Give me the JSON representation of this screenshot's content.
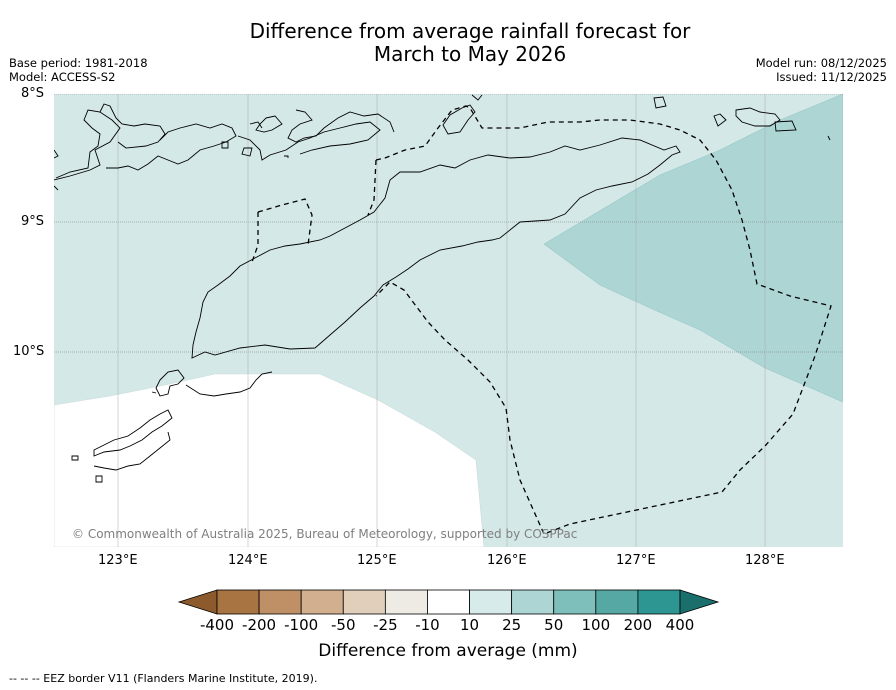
{
  "title": {
    "line1": "Difference from average rainfall forecast for",
    "line2": "March to May 2026"
  },
  "meta": {
    "base_period": "Base period: 1981-2018",
    "model": "Model: ACCESS-S2",
    "model_run": "Model run: 08/12/2025",
    "issued": "Issued: 11/12/2025"
  },
  "map": {
    "latitude_labels": [
      "8°S",
      "9°S",
      "10°S"
    ],
    "longitude_labels": [
      "123°E",
      "124°E",
      "125°E",
      "126°E",
      "127°E",
      "128°E"
    ],
    "copyright": "© Commonwealth of Australia 2025, Bureau of Meteorology, supported by COSPPac",
    "regions": [
      {
        "category": "10 to 25",
        "color": "#d4e8e7"
      },
      {
        "category": "25 to 50",
        "color": "#acd5d4"
      },
      {
        "category": "-10 to 10",
        "color": "#ffffff"
      }
    ]
  },
  "colorbar": {
    "label": "Difference from average (mm)",
    "ticks": [
      "-400",
      "-200",
      "-100",
      "-50",
      "-25",
      "-10",
      "10",
      "25",
      "50",
      "100",
      "200",
      "400"
    ],
    "colors": [
      "#8c5a2c",
      "#a87442",
      "#bf8f66",
      "#d2b08f",
      "#e2cfbb",
      "#eeeae4",
      "#ffffff",
      "#d6ebea",
      "#acd5d4",
      "#7ebfbb",
      "#55a8a4",
      "#2e9692",
      "#1a6f6c"
    ]
  },
  "footer": "-- -- -- EEZ border V11 (Flanders Marine Institute, 2019)."
}
